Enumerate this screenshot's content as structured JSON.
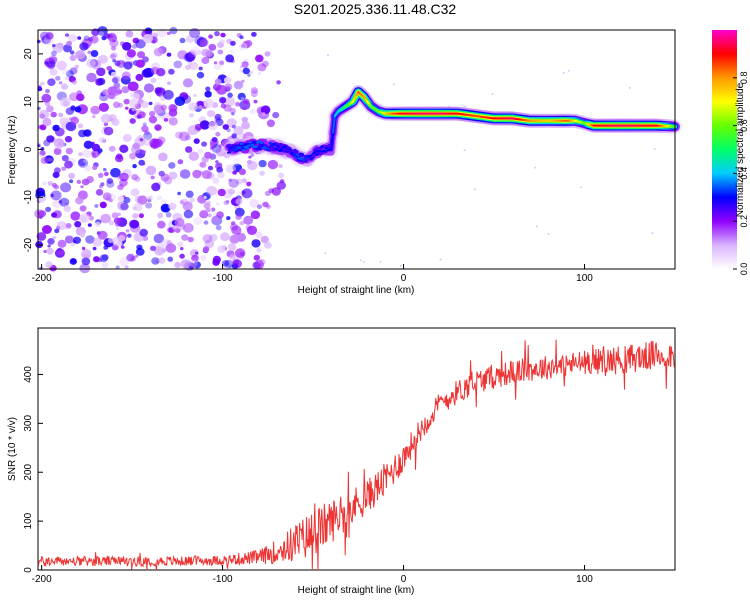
{
  "figure_title": "S201.2025.336.11.48.C32",
  "chart_data": [
    {
      "type": "heatmap",
      "title": "S201.2025.336.11.48.C32",
      "xlabel": "Height of straight line (km)",
      "ylabel": "Frequency (Hz)",
      "xlim": [
        -202,
        150
      ],
      "ylim": [
        -25,
        25
      ],
      "xticks": [
        -200,
        -100,
        0,
        100
      ],
      "yticks": [
        -20,
        -10,
        0,
        10,
        20
      ],
      "colorbar": {
        "label": "Normalized spectral amplitude",
        "range": [
          0,
          1
        ],
        "ticks": [
          0.0,
          0.2,
          0.4,
          0.6,
          0.8
        ],
        "tick_labels": [
          "0.0",
          "0.2",
          "0.4",
          "0.6",
          "0.8"
        ],
        "colormap": [
          "#ffffff",
          "#d9b3ff",
          "#8f00ff",
          "#0000ff",
          "#00ccff",
          "#00ff66",
          "#66ff00",
          "#ffff00",
          "#ff9900",
          "#ff0000",
          "#ff00cc"
        ]
      },
      "noise_region": {
        "x_range": [
          -202,
          -70
        ],
        "y_range": [
          -25,
          25
        ],
        "amplitude": [
          0.05,
          0.3
        ]
      },
      "ridge": {
        "x": [
          -97,
          -90,
          -80,
          -70,
          -62,
          -58,
          -52,
          -48,
          -44,
          -40,
          -38,
          -36,
          -32,
          -28,
          -25,
          -22,
          -18,
          -14,
          -10,
          -6,
          0,
          10,
          20,
          30,
          40,
          50,
          60,
          70,
          80,
          90,
          95,
          100,
          105,
          120,
          140,
          150
        ],
        "freq": [
          0.0,
          0.5,
          1.0,
          0.5,
          -0.5,
          -1.5,
          -2.0,
          -0.5,
          0.0,
          0.0,
          7.0,
          8.0,
          9.0,
          10.0,
          12.0,
          11.0,
          9.0,
          8.0,
          7.5,
          7.5,
          7.5,
          7.5,
          7.5,
          7.5,
          7.0,
          6.5,
          6.5,
          6.0,
          6.0,
          6.0,
          6.0,
          5.5,
          5.0,
          5.0,
          5.0,
          4.8
        ],
        "amp": [
          0.3,
          0.35,
          0.35,
          0.3,
          0.3,
          0.35,
          0.3,
          0.3,
          0.3,
          0.3,
          0.4,
          0.45,
          0.55,
          0.7,
          0.85,
          0.8,
          0.6,
          0.6,
          0.75,
          0.85,
          0.92,
          0.95,
          0.95,
          0.9,
          0.85,
          0.9,
          0.95,
          0.8,
          0.75,
          0.85,
          0.7,
          0.6,
          0.9,
          0.95,
          0.9,
          0.55
        ]
      }
    },
    {
      "type": "line",
      "xlabel": "Height of straight line (km)",
      "ylabel": "SNR (10 * v/v)",
      "xlim": [
        -202,
        150
      ],
      "ylim": [
        0,
        495
      ],
      "xticks": [
        -200,
        -100,
        0,
        100
      ],
      "yticks": [
        0,
        100,
        200,
        300,
        400
      ],
      "series": [
        {
          "name": "SNR",
          "color": "#ee3333",
          "x": [
            -202,
            -180,
            -160,
            -140,
            -120,
            -100,
            -80,
            -70,
            -60,
            -50,
            -40,
            -30,
            -20,
            -10,
            0,
            10,
            20,
            30,
            40,
            60,
            80,
            100,
            120,
            140,
            150
          ],
          "mean": [
            18,
            18,
            18,
            18,
            18,
            20,
            26,
            38,
            55,
            75,
            100,
            125,
            150,
            185,
            230,
            290,
            340,
            365,
            385,
            405,
            415,
            425,
            430,
            440,
            440
          ],
          "noise_amplitude": [
            10,
            10,
            10,
            10,
            10,
            10,
            15,
            25,
            40,
            50,
            45,
            40,
            35,
            35,
            30,
            25,
            25,
            25,
            25,
            25,
            25,
            25,
            30,
            30,
            30
          ]
        }
      ]
    }
  ]
}
